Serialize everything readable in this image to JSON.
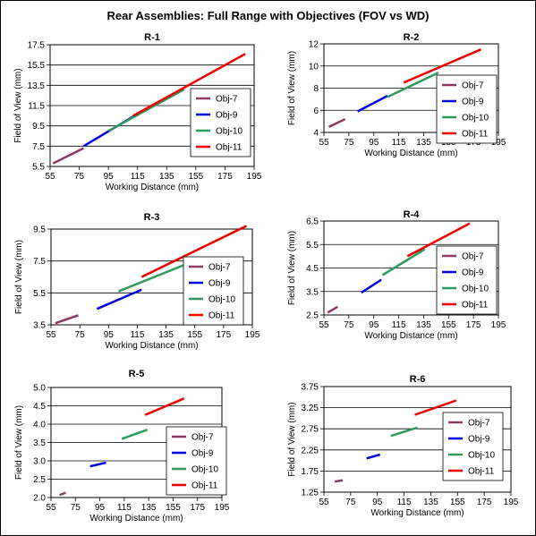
{
  "title": "Rear Assemblies: Full Range with Objectives (FOV vs WD)",
  "colors": {
    "Obj-7": "#8b3a62",
    "Obj-9": "#0000dd",
    "Obj-10": "#2e9a5e",
    "Obj-11": "#ee0000"
  },
  "chart_data": [
    {
      "type": "line",
      "title": "R-1",
      "xlabel": "Working Distance (mm)",
      "ylabel": "Field of View (mm)",
      "xlim": [
        55,
        195
      ],
      "ylim": [
        5.5,
        17.5
      ],
      "xticks": [
        "55",
        "75",
        "95",
        "115",
        "135",
        "155",
        "175",
        "195"
      ],
      "yticks": [
        "5.5",
        "7.5",
        "9.5",
        "11.5",
        "13.5",
        "15.5",
        "17.5"
      ],
      "series": [
        {
          "name": "Obj-7",
          "points": [
            [
              57,
              5.8
            ],
            [
              78,
              7.3
            ]
          ]
        },
        {
          "name": "Obj-9",
          "points": [
            [
              78,
              7.5
            ],
            [
              113,
              10.5
            ]
          ]
        },
        {
          "name": "Obj-10",
          "points": [
            [
              95,
              9.0
            ],
            [
              147,
              13.1
            ]
          ]
        },
        {
          "name": "Obj-11",
          "points": [
            [
              112,
              10.5
            ],
            [
              189,
              16.6
            ]
          ]
        }
      ]
    },
    {
      "type": "line",
      "title": "R-2",
      "xlabel": "Working Distance (mm)",
      "ylabel": "Field of View (mm)",
      "xlim": [
        55,
        195
      ],
      "ylim": [
        4,
        12
      ],
      "xticks": [
        "55",
        "75",
        "95",
        "115",
        "135",
        "155",
        "175",
        "195"
      ],
      "yticks": [
        "4",
        "6",
        "8",
        "10",
        "12"
      ],
      "series": [
        {
          "name": "Obj-7",
          "points": [
            [
              59,
              4.5
            ],
            [
              72,
              5.2
            ]
          ]
        },
        {
          "name": "Obj-9",
          "points": [
            [
              82,
              5.9
            ],
            [
              106,
              7.3
            ]
          ]
        },
        {
          "name": "Obj-10",
          "points": [
            [
              106,
              7.2
            ],
            [
              147,
              9.4
            ]
          ]
        },
        {
          "name": "Obj-11",
          "points": [
            [
              119,
              8.5
            ],
            [
              181,
              11.5
            ]
          ]
        }
      ]
    },
    {
      "type": "line",
      "title": "R-3",
      "xlabel": "Working Distance (mm)",
      "ylabel": "Field of View (mm)",
      "xlim": [
        55,
        195
      ],
      "ylim": [
        3.5,
        9.5
      ],
      "xticks": [
        "55",
        "75",
        "95",
        "115",
        "135",
        "155",
        "175",
        "195"
      ],
      "yticks": [
        "3.5",
        "5.5",
        "7.5",
        "9.5"
      ],
      "series": [
        {
          "name": "Obj-7",
          "points": [
            [
              58,
              3.6
            ],
            [
              74,
              4.1
            ]
          ]
        },
        {
          "name": "Obj-9",
          "points": [
            [
              87,
              4.5
            ],
            [
              118,
              5.7
            ]
          ]
        },
        {
          "name": "Obj-10",
          "points": [
            [
              102,
              5.6
            ],
            [
              160,
              7.7
            ]
          ]
        },
        {
          "name": "Obj-11",
          "points": [
            [
              118,
              6.5
            ],
            [
              191,
              9.7
            ]
          ]
        }
      ]
    },
    {
      "type": "line",
      "title": "R-4",
      "xlabel": "Working Distance (mm)",
      "ylabel": "Field of View (mm)",
      "xlim": [
        55,
        195
      ],
      "ylim": [
        2.5,
        6.5
      ],
      "xticks": [
        "55",
        "75",
        "95",
        "115",
        "135",
        "155",
        "175",
        "195"
      ],
      "yticks": [
        "2.5",
        "3.5",
        "4.5",
        "5.5",
        "6.5"
      ],
      "series": [
        {
          "name": "Obj-7",
          "points": [
            [
              58,
              2.6
            ],
            [
              66,
              2.85
            ]
          ]
        },
        {
          "name": "Obj-9",
          "points": [
            [
              85,
              3.45
            ],
            [
              101,
              4.0
            ]
          ]
        },
        {
          "name": "Obj-10",
          "points": [
            [
              102,
              4.2
            ],
            [
              136,
              5.3
            ]
          ]
        },
        {
          "name": "Obj-11",
          "points": [
            [
              122,
              5.0
            ],
            [
              172,
              6.4
            ]
          ]
        }
      ]
    },
    {
      "type": "line",
      "title": "R-5",
      "xlabel": "Working Distance (mm)",
      "ylabel": "Field of View (mm)",
      "xlim": [
        55,
        195
      ],
      "ylim": [
        2.0,
        5.0
      ],
      "xticks": [
        "55",
        "75",
        "95",
        "115",
        "135",
        "155",
        "175",
        "195"
      ],
      "yticks": [
        "2.0",
        "2.5",
        "3.0",
        "3.5",
        "4.0",
        "4.5",
        "5.0"
      ],
      "series": [
        {
          "name": "Obj-7",
          "points": [
            [
              62,
              2.07
            ],
            [
              67,
              2.13
            ]
          ]
        },
        {
          "name": "Obj-9",
          "points": [
            [
              87,
              2.85
            ],
            [
              100,
              2.95
            ]
          ]
        },
        {
          "name": "Obj-10",
          "points": [
            [
              113,
              3.6
            ],
            [
              134,
              3.85
            ]
          ]
        },
        {
          "name": "Obj-11",
          "points": [
            [
              132,
              4.25
            ],
            [
              164,
              4.7
            ]
          ]
        }
      ]
    },
    {
      "type": "line",
      "title": "R-6",
      "xlabel": "Working Distance (mm)",
      "ylabel": "Field of View (mm)",
      "xlim": [
        55,
        195
      ],
      "ylim": [
        1.25,
        3.75
      ],
      "xticks": [
        "55",
        "75",
        "95",
        "115",
        "135",
        "155",
        "175",
        "195"
      ],
      "yticks": [
        "1.25",
        "1.75",
        "2.25",
        "2.75",
        "3.25",
        "3.75"
      ],
      "series": [
        {
          "name": "Obj-7",
          "points": [
            [
              63,
              1.5
            ],
            [
              69,
              1.53
            ]
          ]
        },
        {
          "name": "Obj-9",
          "points": [
            [
              87,
              2.05
            ],
            [
              97,
              2.14
            ]
          ]
        },
        {
          "name": "Obj-10",
          "points": [
            [
              105,
              2.58
            ],
            [
              125,
              2.78
            ]
          ]
        },
        {
          "name": "Obj-11",
          "points": [
            [
              123,
              3.08
            ],
            [
              154,
              3.42
            ]
          ]
        }
      ]
    }
  ]
}
